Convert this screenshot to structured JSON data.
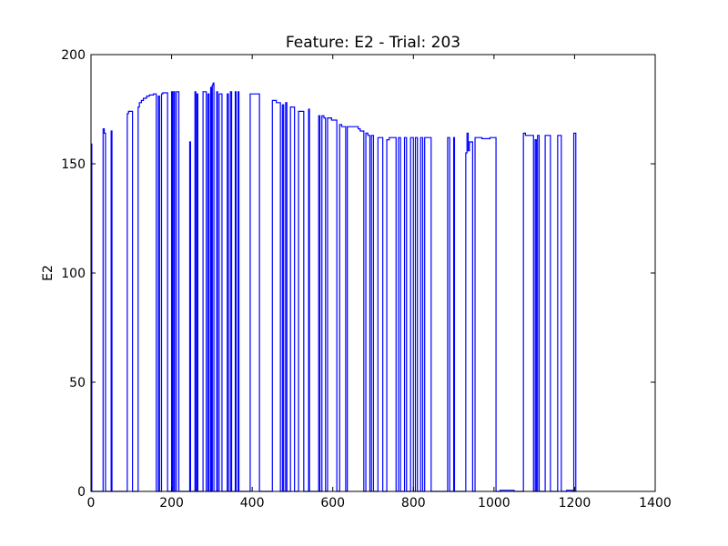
{
  "chart_data": {
    "type": "line",
    "title": "Feature: E2 - Trial: 203",
    "xlabel": "",
    "ylabel": "E2",
    "xlim": [
      0,
      1400
    ],
    "ylim": [
      0,
      200
    ],
    "xticks": [
      0,
      200,
      400,
      600,
      800,
      1000,
      1200,
      1400
    ],
    "yticks": [
      0,
      50,
      100,
      150,
      200
    ],
    "grid": false,
    "line_color": "#0000ff",
    "series": [
      {
        "values": [
          [
            0,
            0
          ],
          [
            1,
            0
          ],
          [
            1,
            159
          ],
          [
            2,
            159
          ],
          [
            2,
            0
          ],
          [
            30,
            0
          ],
          [
            30,
            166
          ],
          [
            33,
            166
          ],
          [
            33,
            164
          ],
          [
            36,
            164
          ],
          [
            36,
            0
          ],
          [
            50,
            0
          ],
          [
            50,
            165
          ],
          [
            52,
            165
          ],
          [
            52,
            0
          ],
          [
            90,
            0
          ],
          [
            90,
            173
          ],
          [
            93,
            173
          ],
          [
            93,
            174
          ],
          [
            103,
            174
          ],
          [
            103,
            0
          ],
          [
            117,
            0
          ],
          [
            117,
            176
          ],
          [
            120,
            176
          ],
          [
            120,
            178
          ],
          [
            125,
            178
          ],
          [
            125,
            179
          ],
          [
            130,
            179
          ],
          [
            130,
            180
          ],
          [
            138,
            180
          ],
          [
            138,
            181
          ],
          [
            145,
            181
          ],
          [
            145,
            181.5
          ],
          [
            155,
            181.5
          ],
          [
            155,
            182
          ],
          [
            162,
            182
          ],
          [
            162,
            0
          ],
          [
            167,
            0
          ],
          [
            167,
            181
          ],
          [
            170,
            181
          ],
          [
            170,
            0
          ],
          [
            175,
            0
          ],
          [
            175,
            182
          ],
          [
            178,
            182
          ],
          [
            178,
            182.5
          ],
          [
            190,
            182.5
          ],
          [
            190,
            0
          ],
          [
            200,
            0
          ],
          [
            200,
            183
          ],
          [
            202,
            183
          ],
          [
            202,
            0
          ],
          [
            205,
            0
          ],
          [
            205,
            183
          ],
          [
            208,
            183
          ],
          [
            208,
            0
          ],
          [
            212,
            0
          ],
          [
            212,
            183
          ],
          [
            218,
            183
          ],
          [
            218,
            0
          ],
          [
            245,
            0
          ],
          [
            245,
            160
          ],
          [
            247,
            160
          ],
          [
            247,
            0
          ],
          [
            258,
            0
          ],
          [
            258,
            183
          ],
          [
            260,
            183
          ],
          [
            260,
            0
          ],
          [
            263,
            0
          ],
          [
            263,
            182
          ],
          [
            265,
            182
          ],
          [
            265,
            0
          ],
          [
            278,
            0
          ],
          [
            278,
            183
          ],
          [
            286,
            183
          ],
          [
            286,
            0
          ],
          [
            290,
            0
          ],
          [
            290,
            182
          ],
          [
            293,
            182
          ],
          [
            293,
            0
          ],
          [
            297,
            0
          ],
          [
            297,
            185
          ],
          [
            299,
            185
          ],
          [
            299,
            0
          ],
          [
            301,
            0
          ],
          [
            301,
            186
          ],
          [
            303,
            186
          ],
          [
            303,
            187
          ],
          [
            305,
            187
          ],
          [
            305,
            0
          ],
          [
            312,
            0
          ],
          [
            312,
            183
          ],
          [
            314,
            183
          ],
          [
            314,
            0
          ],
          [
            318,
            0
          ],
          [
            318,
            182
          ],
          [
            325,
            182
          ],
          [
            325,
            0
          ],
          [
            338,
            0
          ],
          [
            338,
            182
          ],
          [
            341,
            182
          ],
          [
            341,
            0
          ],
          [
            346,
            0
          ],
          [
            346,
            183
          ],
          [
            349,
            183
          ],
          [
            349,
            0
          ],
          [
            358,
            0
          ],
          [
            358,
            183
          ],
          [
            360,
            183
          ],
          [
            360,
            0
          ],
          [
            365,
            0
          ],
          [
            365,
            183
          ],
          [
            367,
            183
          ],
          [
            367,
            0
          ],
          [
            395,
            0
          ],
          [
            395,
            182
          ],
          [
            418,
            182
          ],
          [
            418,
            0
          ],
          [
            450,
            0
          ],
          [
            450,
            179
          ],
          [
            460,
            179
          ],
          [
            460,
            178
          ],
          [
            470,
            178
          ],
          [
            470,
            0
          ],
          [
            475,
            0
          ],
          [
            475,
            177
          ],
          [
            478,
            177
          ],
          [
            478,
            0
          ],
          [
            483,
            0
          ],
          [
            483,
            178
          ],
          [
            486,
            178
          ],
          [
            486,
            0
          ],
          [
            495,
            0
          ],
          [
            495,
            176
          ],
          [
            505,
            176
          ],
          [
            505,
            0
          ],
          [
            515,
            0
          ],
          [
            515,
            174
          ],
          [
            528,
            174
          ],
          [
            528,
            0
          ],
          [
            540,
            0
          ],
          [
            540,
            175
          ],
          [
            542,
            175
          ],
          [
            542,
            0
          ],
          [
            565,
            0
          ],
          [
            565,
            172
          ],
          [
            568,
            172
          ],
          [
            568,
            0
          ],
          [
            573,
            0
          ],
          [
            573,
            172
          ],
          [
            578,
            172
          ],
          [
            578,
            171
          ],
          [
            582,
            171
          ],
          [
            582,
            0
          ],
          [
            587,
            0
          ],
          [
            587,
            171
          ],
          [
            597,
            171
          ],
          [
            597,
            170
          ],
          [
            610,
            170
          ],
          [
            610,
            0
          ],
          [
            617,
            0
          ],
          [
            617,
            168
          ],
          [
            622,
            168
          ],
          [
            622,
            167
          ],
          [
            632,
            167
          ],
          [
            632,
            0
          ],
          [
            636,
            0
          ],
          [
            636,
            167
          ],
          [
            663,
            167
          ],
          [
            663,
            166
          ],
          [
            668,
            166
          ],
          [
            668,
            165
          ],
          [
            677,
            165
          ],
          [
            677,
            0
          ],
          [
            682,
            0
          ],
          [
            682,
            164
          ],
          [
            687,
            164
          ],
          [
            687,
            163
          ],
          [
            692,
            163
          ],
          [
            692,
            0
          ],
          [
            696,
            0
          ],
          [
            696,
            163
          ],
          [
            701,
            163
          ],
          [
            701,
            0
          ],
          [
            712,
            0
          ],
          [
            712,
            162
          ],
          [
            724,
            162
          ],
          [
            724,
            0
          ],
          [
            734,
            0
          ],
          [
            734,
            161
          ],
          [
            740,
            161
          ],
          [
            740,
            162
          ],
          [
            757,
            162
          ],
          [
            757,
            0
          ],
          [
            763,
            0
          ],
          [
            763,
            162
          ],
          [
            768,
            162
          ],
          [
            768,
            0
          ],
          [
            778,
            0
          ],
          [
            778,
            162
          ],
          [
            783,
            162
          ],
          [
            783,
            0
          ],
          [
            793,
            0
          ],
          [
            793,
            162
          ],
          [
            800,
            162
          ],
          [
            800,
            0
          ],
          [
            805,
            0
          ],
          [
            805,
            162
          ],
          [
            810,
            162
          ],
          [
            810,
            0
          ],
          [
            818,
            0
          ],
          [
            818,
            162
          ],
          [
            823,
            162
          ],
          [
            823,
            0
          ],
          [
            828,
            0
          ],
          [
            828,
            162
          ],
          [
            844,
            162
          ],
          [
            844,
            0
          ],
          [
            885,
            0
          ],
          [
            885,
            162
          ],
          [
            890,
            162
          ],
          [
            890,
            0
          ],
          [
            900,
            0
          ],
          [
            900,
            162
          ],
          [
            902,
            162
          ],
          [
            902,
            0
          ],
          [
            930,
            0
          ],
          [
            930,
            155
          ],
          [
            933,
            155
          ],
          [
            933,
            164
          ],
          [
            936,
            164
          ],
          [
            936,
            156
          ],
          [
            939,
            156
          ],
          [
            939,
            160
          ],
          [
            947,
            160
          ],
          [
            947,
            0
          ],
          [
            953,
            0
          ],
          [
            953,
            162
          ],
          [
            970,
            162
          ],
          [
            970,
            161.5
          ],
          [
            990,
            161.5
          ],
          [
            990,
            162
          ],
          [
            1005,
            162
          ],
          [
            1005,
            0
          ],
          [
            1015,
            0
          ],
          [
            1015,
            0.5
          ],
          [
            1050,
            0.5
          ],
          [
            1050,
            0
          ],
          [
            1073,
            0
          ],
          [
            1073,
            164
          ],
          [
            1078,
            164
          ],
          [
            1078,
            163
          ],
          [
            1098,
            163
          ],
          [
            1098,
            0
          ],
          [
            1102,
            0
          ],
          [
            1102,
            161
          ],
          [
            1105,
            161
          ],
          [
            1105,
            0
          ],
          [
            1108,
            0
          ],
          [
            1108,
            163
          ],
          [
            1112,
            163
          ],
          [
            1112,
            0
          ],
          [
            1127,
            0
          ],
          [
            1127,
            163
          ],
          [
            1140,
            163
          ],
          [
            1140,
            0
          ],
          [
            1158,
            0
          ],
          [
            1158,
            163
          ],
          [
            1167,
            163
          ],
          [
            1167,
            0
          ],
          [
            1180,
            0
          ],
          [
            1180,
            0.5
          ],
          [
            1195,
            0.5
          ],
          [
            1195,
            0
          ],
          [
            1198,
            0
          ],
          [
            1198,
            164
          ],
          [
            1203,
            164
          ],
          [
            1203,
            0
          ],
          [
            1205,
            0
          ]
        ]
      }
    ]
  }
}
